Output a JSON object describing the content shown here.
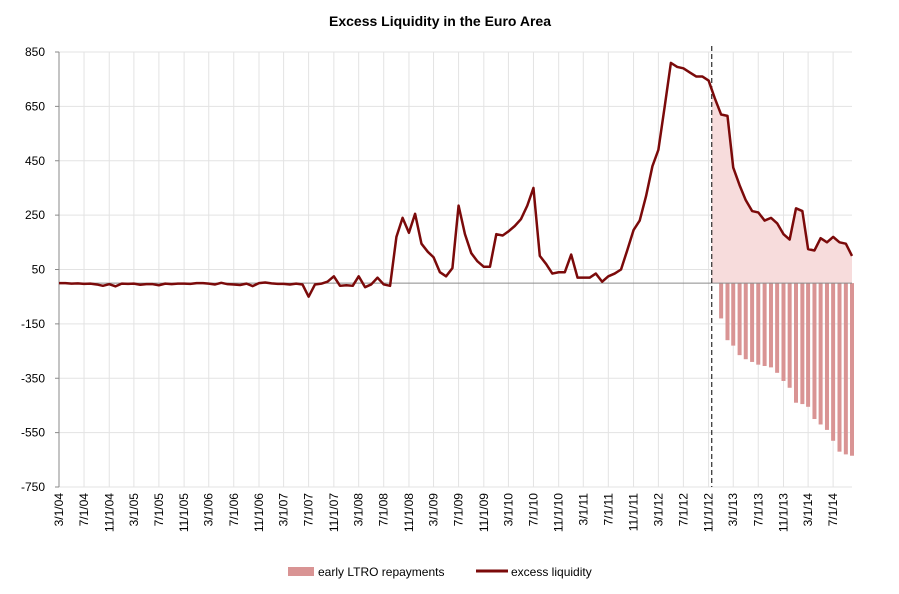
{
  "chart_data": {
    "type": "line",
    "title": "Excess Liquidity in the Euro Area",
    "xlabel": "",
    "ylabel": "",
    "ylim": [
      -750,
      850
    ],
    "y_ticks": [
      850,
      650,
      450,
      250,
      50,
      -150,
      -350,
      -550,
      -750
    ],
    "grid": true,
    "legend_position": "bottom",
    "x_tick_labels": [
      "3/1/04",
      "7/1/04",
      "11/1/04",
      "3/1/05",
      "7/1/05",
      "11/1/05",
      "3/1/06",
      "7/1/06",
      "11/1/06",
      "3/1/07",
      "7/1/07",
      "11/1/07",
      "3/1/08",
      "7/1/08",
      "11/1/08",
      "3/1/09",
      "7/1/09",
      "11/1/09",
      "3/1/10",
      "7/1/10",
      "11/1/10",
      "3/1/11",
      "7/1/11",
      "11/1/11",
      "3/1/12",
      "7/1/12",
      "11/1/12",
      "3/1/13",
      "7/1/13",
      "11/1/13",
      "3/1/14",
      "7/1/14"
    ],
    "marker_date": "12/2012",
    "series": [
      {
        "name": "excess liquidity",
        "type": "line",
        "color": "#7b0a0a",
        "fill_after_marker": "#f7dcdc",
        "points": [
          [
            "2004-03-01",
            0
          ],
          [
            "2004-04-01",
            0
          ],
          [
            "2004-05-01",
            -2
          ],
          [
            "2004-06-01",
            -1
          ],
          [
            "2004-07-01",
            -3
          ],
          [
            "2004-08-01",
            -2
          ],
          [
            "2004-09-01",
            -5
          ],
          [
            "2004-10-01",
            -10
          ],
          [
            "2004-11-01",
            -4
          ],
          [
            "2004-12-01",
            -12
          ],
          [
            "2005-01-01",
            -2
          ],
          [
            "2005-02-01",
            -3
          ],
          [
            "2005-03-01",
            -2
          ],
          [
            "2005-04-01",
            -6
          ],
          [
            "2005-05-01",
            -4
          ],
          [
            "2005-06-01",
            -4
          ],
          [
            "2005-07-01",
            -8
          ],
          [
            "2005-08-01",
            -2
          ],
          [
            "2005-09-01",
            -4
          ],
          [
            "2005-10-01",
            -2
          ],
          [
            "2005-11-01",
            -2
          ],
          [
            "2005-12-01",
            -3
          ],
          [
            "2006-01-01",
            0
          ],
          [
            "2006-02-01",
            0
          ],
          [
            "2006-03-01",
            -2
          ],
          [
            "2006-04-01",
            -5
          ],
          [
            "2006-05-01",
            1
          ],
          [
            "2006-06-01",
            -4
          ],
          [
            "2006-07-01",
            -5
          ],
          [
            "2006-08-01",
            -7
          ],
          [
            "2006-09-01",
            -2
          ],
          [
            "2006-10-01",
            -11
          ],
          [
            "2006-11-01",
            0
          ],
          [
            "2006-12-01",
            2
          ],
          [
            "2007-01-01",
            -1
          ],
          [
            "2007-02-01",
            -3
          ],
          [
            "2007-03-01",
            -3
          ],
          [
            "2007-04-01",
            -5
          ],
          [
            "2007-05-01",
            -2
          ],
          [
            "2007-06-01",
            -5
          ],
          [
            "2007-07-01",
            -50
          ],
          [
            "2007-08-01",
            -5
          ],
          [
            "2007-09-01",
            -2
          ],
          [
            "2007-10-01",
            5
          ],
          [
            "2007-11-01",
            25
          ],
          [
            "2007-12-01",
            -10
          ],
          [
            "2008-01-01",
            -8
          ],
          [
            "2008-02-01",
            -10
          ],
          [
            "2008-03-01",
            25
          ],
          [
            "2008-04-01",
            -15
          ],
          [
            "2008-05-01",
            -5
          ],
          [
            "2008-06-01",
            20
          ],
          [
            "2008-07-01",
            -5
          ],
          [
            "2008-08-01",
            -10
          ],
          [
            "2008-09-01",
            170
          ],
          [
            "2008-10-01",
            240
          ],
          [
            "2008-11-01",
            185
          ],
          [
            "2008-12-01",
            255
          ],
          [
            "2009-01-01",
            145
          ],
          [
            "2009-02-01",
            115
          ],
          [
            "2009-03-01",
            95
          ],
          [
            "2009-04-01",
            40
          ],
          [
            "2009-05-01",
            25
          ],
          [
            "2009-06-01",
            55
          ],
          [
            "2009-07-01",
            285
          ],
          [
            "2009-08-01",
            180
          ],
          [
            "2009-09-01",
            110
          ],
          [
            "2009-10-01",
            80
          ],
          [
            "2009-11-01",
            60
          ],
          [
            "2009-12-01",
            60
          ],
          [
            "2010-01-01",
            180
          ],
          [
            "2010-02-01",
            175
          ],
          [
            "2010-03-01",
            190
          ],
          [
            "2010-04-01",
            210
          ],
          [
            "2010-05-01",
            235
          ],
          [
            "2010-06-01",
            285
          ],
          [
            "2010-07-01",
            350
          ],
          [
            "2010-08-01",
            100
          ],
          [
            "2010-09-01",
            70
          ],
          [
            "2010-10-01",
            35
          ],
          [
            "2010-11-01",
            40
          ],
          [
            "2010-12-01",
            40
          ],
          [
            "2011-01-01",
            105
          ],
          [
            "2011-02-01",
            20
          ],
          [
            "2011-03-01",
            20
          ],
          [
            "2011-04-01",
            20
          ],
          [
            "2011-05-01",
            35
          ],
          [
            "2011-06-01",
            5
          ],
          [
            "2011-07-01",
            25
          ],
          [
            "2011-08-01",
            35
          ],
          [
            "2011-09-01",
            50
          ],
          [
            "2011-10-01",
            120
          ],
          [
            "2011-11-01",
            195
          ],
          [
            "2011-12-01",
            230
          ],
          [
            "2012-01-01",
            320
          ],
          [
            "2012-02-01",
            430
          ],
          [
            "2012-03-01",
            490
          ],
          [
            "2012-04-01",
            650
          ],
          [
            "2012-05-01",
            810
          ],
          [
            "2012-06-01",
            795
          ],
          [
            "2012-07-01",
            790
          ],
          [
            "2012-08-01",
            775
          ],
          [
            "2012-09-01",
            760
          ],
          [
            "2012-10-01",
            760
          ],
          [
            "2012-11-01",
            745
          ],
          [
            "2012-12-01",
            680
          ],
          [
            "2013-01-01",
            620
          ],
          [
            "2013-02-01",
            615
          ],
          [
            "2013-03-01",
            425
          ],
          [
            "2013-04-01",
            360
          ],
          [
            "2013-05-01",
            305
          ],
          [
            "2013-06-01",
            265
          ],
          [
            "2013-07-01",
            260
          ],
          [
            "2013-08-01",
            230
          ],
          [
            "2013-09-01",
            240
          ],
          [
            "2013-10-01",
            220
          ],
          [
            "2013-11-01",
            180
          ],
          [
            "2013-12-01",
            160
          ],
          [
            "2014-01-01",
            275
          ],
          [
            "2014-02-01",
            265
          ],
          [
            "2014-03-01",
            125
          ],
          [
            "2014-04-01",
            120
          ],
          [
            "2014-05-01",
            165
          ],
          [
            "2014-06-01",
            150
          ],
          [
            "2014-07-01",
            170
          ],
          [
            "2014-08-01",
            150
          ],
          [
            "2014-09-01",
            145
          ],
          [
            "2014-10-01",
            100
          ]
        ]
      },
      {
        "name": "early LTRO repayments",
        "type": "bar",
        "color": "#d99494",
        "points": [
          [
            "2013-01-01",
            -130
          ],
          [
            "2013-02-01",
            -210
          ],
          [
            "2013-03-01",
            -230
          ],
          [
            "2013-04-01",
            -265
          ],
          [
            "2013-05-01",
            -280
          ],
          [
            "2013-06-01",
            -290
          ],
          [
            "2013-07-01",
            -300
          ],
          [
            "2013-08-01",
            -305
          ],
          [
            "2013-09-01",
            -310
          ],
          [
            "2013-10-01",
            -330
          ],
          [
            "2013-11-01",
            -360
          ],
          [
            "2013-12-01",
            -385
          ],
          [
            "2014-01-01",
            -440
          ],
          [
            "2014-02-01",
            -445
          ],
          [
            "2014-03-01",
            -455
          ],
          [
            "2014-04-01",
            -500
          ],
          [
            "2014-05-01",
            -520
          ],
          [
            "2014-06-01",
            -540
          ],
          [
            "2014-07-01",
            -580
          ],
          [
            "2014-08-01",
            -620
          ],
          [
            "2014-09-01",
            -630
          ],
          [
            "2014-10-01",
            -635
          ]
        ]
      }
    ]
  }
}
